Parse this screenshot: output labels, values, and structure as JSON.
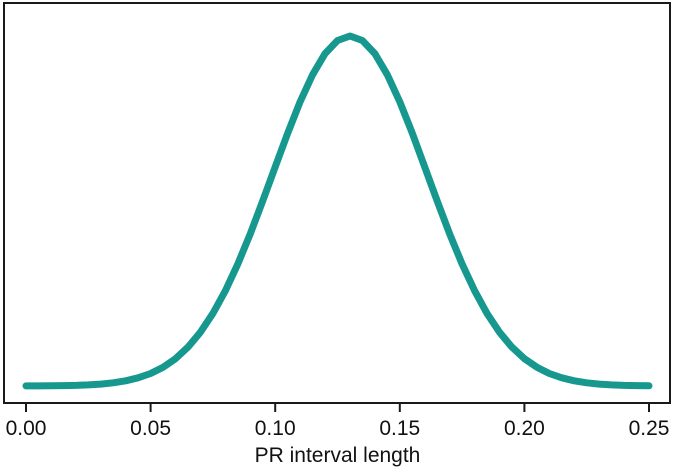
{
  "page": {
    "background_color": "#ffffff"
  },
  "chart": {
    "frame_color": "#1a1a1a",
    "curve_color": "#17988F",
    "text_color": "#111111",
    "tick_color": "#1a1a1a"
  },
  "chart_data": {
    "type": "line",
    "subtype": "density-curve",
    "title": "",
    "xlabel": "PR interval length",
    "ylabel": "",
    "xlim": [
      0,
      0.25
    ],
    "grid": false,
    "legend": null,
    "x_tick_labels": [
      "0.00",
      "0.05",
      "0.10",
      "0.15",
      "0.20",
      "0.25"
    ],
    "x_tick_values": [
      0,
      0.05,
      0.1,
      0.15,
      0.2,
      0.25
    ],
    "distribution": {
      "shape": "normal",
      "mean": 0.13,
      "sd": 0.031,
      "peak_relative": 1.0
    },
    "x": [
      0,
      0.005,
      0.01,
      0.015,
      0.02,
      0.025,
      0.03,
      0.035,
      0.04,
      0.045,
      0.05,
      0.055,
      0.06,
      0.065,
      0.07,
      0.075,
      0.08,
      0.085,
      0.09,
      0.095,
      0.1,
      0.105,
      0.11,
      0.115,
      0.12,
      0.125,
      0.13,
      0.135,
      0.14,
      0.145,
      0.15,
      0.155,
      0.16,
      0.165,
      0.17,
      0.175,
      0.18,
      0.185,
      0.19,
      0.195,
      0.2,
      0.205,
      0.21,
      0.215,
      0.22,
      0.225,
      0.23,
      0.235,
      0.24,
      0.245,
      0.25
    ],
    "y_relative": [
      0.0002,
      0.0003,
      0.0006,
      0.001,
      0.0018,
      0.0032,
      0.0055,
      0.0091,
      0.0148,
      0.0233,
      0.0358,
      0.0536,
      0.0781,
      0.111,
      0.1537,
      0.2073,
      0.2723,
      0.3487,
      0.435,
      0.5287,
      0.6261,
      0.7224,
      0.8121,
      0.8895,
      0.9493,
      0.9871,
      1,
      0.9871,
      0.9493,
      0.8895,
      0.8121,
      0.7224,
      0.6261,
      0.5287,
      0.435,
      0.3487,
      0.2723,
      0.2073,
      0.1537,
      0.111,
      0.0781,
      0.0536,
      0.0358,
      0.0233,
      0.0148,
      0.0091,
      0.0055,
      0.0032,
      0.0018,
      0.001,
      0.0006
    ]
  }
}
